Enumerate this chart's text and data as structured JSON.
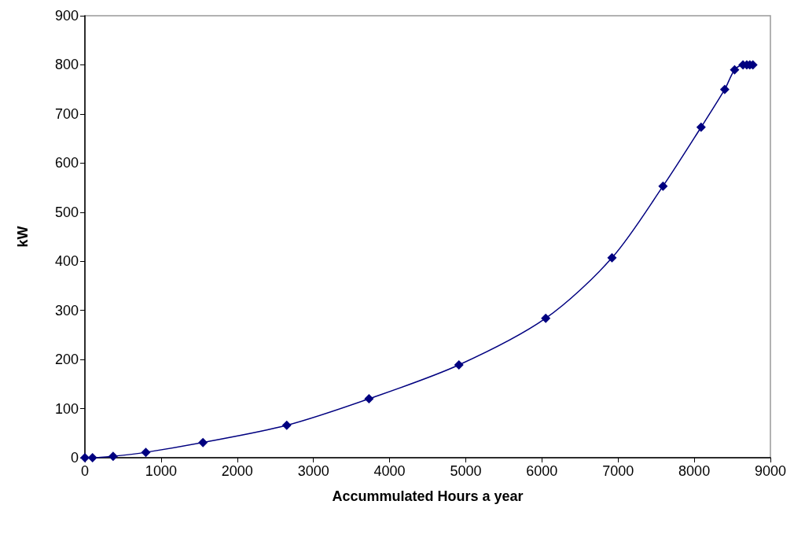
{
  "chart_data": {
    "type": "line",
    "xlabel": "Accummulated Hours a year",
    "ylabel": "kW",
    "x": [
      0,
      100,
      370,
      800,
      1550,
      2650,
      3730,
      4910,
      6050,
      6920,
      7590,
      8090,
      8400,
      8530,
      8640,
      8690,
      8730,
      8770
    ],
    "series": [
      {
        "color": "#000080",
        "values": [
          0,
          0,
          3,
          11,
          31,
          66,
          120,
          189,
          284,
          407,
          553,
          673,
          750,
          790,
          800,
          800,
          800,
          800
        ]
      }
    ],
    "xlim": [
      0,
      9000
    ],
    "xticks": [
      0,
      1000,
      2000,
      3000,
      4000,
      5000,
      6000,
      7000,
      8000,
      9000
    ],
    "ylim": [
      0,
      900
    ],
    "yticks": [
      0,
      100,
      200,
      300,
      400,
      500,
      600,
      700,
      800,
      900
    ],
    "grid": false,
    "marker": "diamond",
    "line_style": "solid"
  }
}
